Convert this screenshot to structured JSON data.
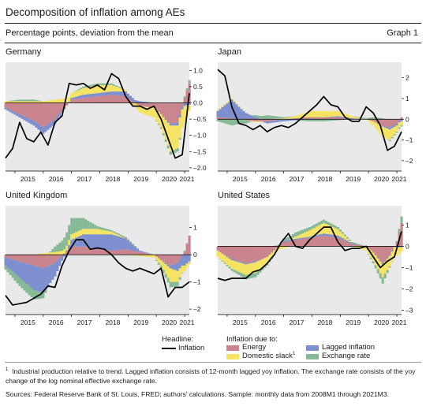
{
  "header": {
    "title": "Decomposition of inflation among AEs",
    "subtitle": "Percentage points, deviation from the mean",
    "graph_number": "Graph 1"
  },
  "legend": {
    "headline_title": "Headline:",
    "headline_item": "Inflation",
    "due_title": "Inflation due to:",
    "items": [
      {
        "label": "Energy",
        "sup": "",
        "color": "#c9848d"
      },
      {
        "label": "Lagged inflation",
        "sup": "",
        "color": "#7e8fcf"
      },
      {
        "label": "Domestic slack",
        "sup": "1",
        "color": "#f5e463"
      },
      {
        "label": "Exchange rate",
        "sup": "",
        "color": "#86b995"
      }
    ]
  },
  "footnotes": {
    "note_marker": "1",
    "note": "Industrial production relative to trend. Lagged inflation consists of 12-month lagged yoy inflation. The exchange rate consists of the yoy change of the log nominal effective exchange rate.",
    "sources": "Sources: Federal Reserve Bank of St. Louis, FRED; authors' calculations. Sample: monthly data from 2008M1 through 2021M3."
  },
  "colors": {
    "energy": "#c9848d",
    "lagged": "#7e8fcf",
    "slack": "#f5e463",
    "fx": "#86b995",
    "headline": "#000000",
    "plot_bg": "#e9e9e9"
  },
  "chart_data": [
    {
      "type": "bar",
      "title": "Germany",
      "stacked": true,
      "x_ticks": [
        "2015",
        "2016",
        "2017",
        "2018",
        "2019",
        "2020",
        "2021"
      ],
      "xlim": [
        "2014-09",
        "2021-03"
      ],
      "ylim": [
        -2.1,
        1.25
      ],
      "y_ticks": [
        1.0,
        0.5,
        0.0,
        -0.5,
        -1.0,
        -1.5,
        -2.0
      ],
      "y_tick_labels": [
        "1.0",
        "0.5",
        "0.0",
        "–0.5",
        "–1.0",
        "–1.5",
        "–2.0"
      ],
      "y_axis_side": "right",
      "x_knots": [
        "2014-09",
        "2015-03",
        "2015-09",
        "2016-01",
        "2016-06",
        "2017-01",
        "2017-06",
        "2017-12",
        "2018-06",
        "2018-12",
        "2019-06",
        "2019-12",
        "2020-03",
        "2020-07",
        "2020-10",
        "2021-01",
        "2021-03"
      ],
      "series": [
        {
          "name": "Energy",
          "key": "energy",
          "values": [
            -0.15,
            -0.35,
            -0.55,
            -0.75,
            -0.5,
            0.1,
            0.15,
            0.2,
            0.25,
            0.2,
            -0.1,
            -0.15,
            -0.35,
            -0.65,
            -0.6,
            0.15,
            0.6
          ]
        },
        {
          "name": "Lagged inflation",
          "key": "lagged",
          "values": [
            -0.05,
            -0.1,
            -0.15,
            -0.2,
            -0.15,
            0.05,
            0.1,
            0.1,
            0.1,
            0.15,
            0.05,
            0.0,
            0.0,
            -0.05,
            -0.1,
            -0.1,
            -0.05
          ]
        },
        {
          "name": "Domestic slack",
          "key": "slack",
          "values": [
            0.05,
            0.05,
            0.05,
            0.05,
            0.1,
            0.15,
            0.2,
            0.25,
            0.2,
            0.05,
            -0.2,
            -0.3,
            -0.4,
            -0.8,
            -0.7,
            -0.5,
            -0.2
          ]
        },
        {
          "name": "Exchange rate",
          "key": "fx",
          "values": [
            0.0,
            0.05,
            0.05,
            0.0,
            0.0,
            0.0,
            0.05,
            0.05,
            0.05,
            0.0,
            0.0,
            0.0,
            -0.05,
            -0.1,
            -0.1,
            0.05,
            0.1
          ]
        }
      ],
      "headline": {
        "name": "Inflation",
        "x": [
          "2014-09",
          "2014-12",
          "2015-03",
          "2015-06",
          "2015-09",
          "2015-12",
          "2016-03",
          "2016-06",
          "2016-09",
          "2016-12",
          "2017-03",
          "2017-06",
          "2017-09",
          "2017-12",
          "2018-03",
          "2018-06",
          "2018-09",
          "2018-12",
          "2019-03",
          "2019-06",
          "2019-09",
          "2019-12",
          "2020-03",
          "2020-06",
          "2020-09",
          "2020-12",
          "2021-03"
        ],
        "y": [
          -1.7,
          -1.4,
          -0.6,
          -1.1,
          -1.2,
          -0.9,
          -1.3,
          -0.6,
          -0.4,
          0.6,
          0.55,
          0.6,
          0.45,
          0.55,
          0.4,
          0.9,
          0.75,
          0.2,
          -0.1,
          -0.1,
          -0.2,
          -0.1,
          -0.5,
          -1.1,
          -1.7,
          -1.6,
          0.3
        ]
      }
    },
    {
      "type": "bar",
      "title": "Japan",
      "stacked": true,
      "x_ticks": [
        "2015",
        "2016",
        "2017",
        "2018",
        "2019",
        "2020",
        "2021"
      ],
      "xlim": [
        "2014-09",
        "2021-03"
      ],
      "ylim": [
        -2.5,
        2.75
      ],
      "y_ticks": [
        2,
        1,
        0,
        -1,
        -2
      ],
      "y_tick_labels": [
        "2",
        "1",
        "0",
        "–1",
        "–2"
      ],
      "y_axis_side": "right",
      "x_knots": [
        "2014-09",
        "2015-03",
        "2015-09",
        "2016-01",
        "2016-06",
        "2017-01",
        "2017-06",
        "2017-12",
        "2018-06",
        "2018-12",
        "2019-06",
        "2019-12",
        "2020-03",
        "2020-07",
        "2020-10",
        "2021-01",
        "2021-03"
      ],
      "series": [
        {
          "name": "Energy",
          "key": "energy",
          "values": [
            0.1,
            0.05,
            -0.05,
            -0.1,
            -0.1,
            0.0,
            0.05,
            0.1,
            0.1,
            0.1,
            0.0,
            0.0,
            -0.1,
            -0.3,
            -0.4,
            -0.2,
            0.1
          ]
        },
        {
          "name": "Lagged inflation",
          "key": "lagged",
          "values": [
            0.3,
            0.9,
            0.3,
            0.1,
            -0.1,
            -0.1,
            -0.05,
            0.0,
            0.0,
            0.05,
            0.05,
            0.0,
            0.0,
            -0.05,
            -0.1,
            -0.1,
            -0.1
          ]
        },
        {
          "name": "Domestic slack",
          "key": "slack",
          "values": [
            0.05,
            0.05,
            0.0,
            -0.05,
            0.0,
            0.05,
            0.1,
            0.3,
            0.3,
            0.25,
            0.1,
            0.0,
            -0.2,
            -0.5,
            -0.5,
            -0.3,
            -0.2
          ]
        },
        {
          "name": "Exchange rate",
          "key": "fx",
          "values": [
            -0.1,
            -0.3,
            -0.15,
            0.1,
            0.2,
            0.05,
            0.0,
            -0.1,
            -0.1,
            -0.05,
            0.0,
            0.05,
            0.1,
            0.05,
            -0.05,
            -0.05,
            -0.05
          ]
        }
      ],
      "headline": {
        "name": "Inflation",
        "x": [
          "2014-09",
          "2014-12",
          "2015-03",
          "2015-06",
          "2015-09",
          "2015-12",
          "2016-03",
          "2016-06",
          "2016-09",
          "2016-12",
          "2017-03",
          "2017-06",
          "2017-09",
          "2017-12",
          "2018-03",
          "2018-06",
          "2018-09",
          "2018-12",
          "2019-03",
          "2019-06",
          "2019-09",
          "2019-12",
          "2020-03",
          "2020-06",
          "2020-09",
          "2020-12",
          "2021-03"
        ],
        "y": [
          2.4,
          2.1,
          0.6,
          -0.2,
          -0.3,
          -0.5,
          -0.3,
          -0.6,
          -0.4,
          -0.3,
          -0.4,
          -0.2,
          0.1,
          0.4,
          0.7,
          1.1,
          0.7,
          0.6,
          0.1,
          -0.1,
          -0.1,
          0.6,
          0.3,
          -0.3,
          -1.5,
          -1.3,
          -0.6
        ]
      }
    },
    {
      "type": "bar",
      "title": "United Kingdom",
      "stacked": true,
      "x_ticks": [
        "2015",
        "2016",
        "2017",
        "2018",
        "2019",
        "2020",
        "2021"
      ],
      "xlim": [
        "2014-09",
        "2021-03"
      ],
      "ylim": [
        -2.2,
        1.8
      ],
      "y_ticks": [
        1,
        0,
        -1,
        -2
      ],
      "y_tick_labels": [
        "1",
        "0",
        "–1",
        "–2"
      ],
      "y_axis_side": "right",
      "x_knots": [
        "2014-09",
        "2015-03",
        "2015-09",
        "2016-01",
        "2016-06",
        "2017-01",
        "2017-06",
        "2017-12",
        "2018-06",
        "2018-12",
        "2019-06",
        "2019-12",
        "2020-03",
        "2020-07",
        "2020-10",
        "2021-01",
        "2021-03"
      ],
      "series": [
        {
          "name": "Energy",
          "key": "energy",
          "values": [
            -0.1,
            -0.25,
            -0.4,
            -0.5,
            -0.3,
            0.3,
            0.3,
            0.2,
            0.15,
            0.2,
            0.1,
            0.0,
            -0.2,
            -0.4,
            -0.3,
            0.1,
            0.7
          ]
        },
        {
          "name": "Lagged inflation",
          "key": "lagged",
          "values": [
            -0.3,
            -0.6,
            -0.9,
            -0.9,
            -0.5,
            0.25,
            0.45,
            0.55,
            0.6,
            0.4,
            0.05,
            0.0,
            0.0,
            -0.1,
            -0.3,
            -0.4,
            -0.25
          ]
        },
        {
          "name": "Domestic slack",
          "key": "slack",
          "values": [
            0.0,
            0.0,
            0.0,
            0.05,
            0.1,
            0.2,
            0.2,
            0.2,
            0.1,
            0.0,
            -0.05,
            -0.1,
            -0.2,
            -0.5,
            -0.4,
            -0.2,
            -0.1
          ]
        },
        {
          "name": "Exchange rate",
          "key": "fx",
          "values": [
            -0.15,
            -0.3,
            -0.35,
            -0.2,
            0.2,
            0.6,
            0.4,
            0.1,
            0.05,
            0.05,
            0.0,
            0.0,
            -0.1,
            -0.2,
            -0.15,
            0.05,
            0.0
          ]
        }
      ],
      "headline": {
        "name": "Inflation",
        "x": [
          "2014-09",
          "2014-12",
          "2015-03",
          "2015-06",
          "2015-09",
          "2015-12",
          "2016-03",
          "2016-06",
          "2016-09",
          "2016-12",
          "2017-03",
          "2017-06",
          "2017-09",
          "2017-12",
          "2018-03",
          "2018-06",
          "2018-09",
          "2018-12",
          "2019-03",
          "2019-06",
          "2019-09",
          "2019-12",
          "2020-03",
          "2020-06",
          "2020-09",
          "2020-12",
          "2021-03"
        ],
        "y": [
          -1.5,
          -1.85,
          -1.8,
          -1.75,
          -1.6,
          -1.45,
          -1.15,
          -1.2,
          -0.4,
          0.15,
          0.55,
          0.55,
          0.2,
          0.25,
          0.2,
          0.0,
          -0.3,
          -0.5,
          -0.6,
          -0.5,
          -0.6,
          -0.7,
          -0.5,
          -1.55,
          -1.2,
          -1.2,
          -1.0
        ]
      }
    },
    {
      "type": "bar",
      "title": "United States",
      "stacked": true,
      "x_ticks": [
        "2015",
        "2016",
        "2017",
        "2018",
        "2019",
        "2020",
        "2021"
      ],
      "xlim": [
        "2014-09",
        "2021-03"
      ],
      "ylim": [
        -3.2,
        1.9
      ],
      "y_ticks": [
        1,
        0,
        -1,
        -2,
        -3
      ],
      "y_tick_labels": [
        "1",
        "0",
        "–1",
        "–2",
        "–3"
      ],
      "y_axis_side": "right",
      "x_knots": [
        "2014-09",
        "2015-03",
        "2015-09",
        "2016-01",
        "2016-06",
        "2017-01",
        "2017-06",
        "2017-12",
        "2018-06",
        "2018-12",
        "2019-06",
        "2019-12",
        "2020-03",
        "2020-07",
        "2020-10",
        "2021-01",
        "2021-03"
      ],
      "series": [
        {
          "name": "Energy",
          "key": "energy",
          "values": [
            -0.2,
            -0.6,
            -0.8,
            -0.7,
            -0.5,
            0.2,
            0.3,
            0.4,
            0.5,
            0.4,
            0.1,
            0.0,
            -0.3,
            -0.8,
            -0.4,
            0.2,
            1.1
          ]
        },
        {
          "name": "Lagged inflation",
          "key": "lagged",
          "values": [
            0.0,
            -0.05,
            -0.05,
            -0.05,
            0.0,
            0.05,
            0.05,
            0.05,
            0.1,
            0.1,
            0.05,
            0.0,
            0.0,
            -0.05,
            -0.05,
            -0.05,
            -0.05
          ]
        },
        {
          "name": "Domestic slack",
          "key": "slack",
          "values": [
            -0.3,
            -0.4,
            -0.5,
            -0.5,
            -0.3,
            -0.1,
            0.1,
            0.3,
            0.5,
            0.3,
            0.0,
            -0.2,
            -0.4,
            -0.6,
            -0.5,
            -0.4,
            -0.2
          ]
        },
        {
          "name": "Exchange rate",
          "key": "fx",
          "values": [
            0.0,
            -0.1,
            -0.2,
            -0.2,
            -0.1,
            0.1,
            0.2,
            0.15,
            0.15,
            0.1,
            0.05,
            0.0,
            -0.1,
            -0.3,
            -0.05,
            0.05,
            0.3
          ]
        }
      ],
      "headline": {
        "name": "Inflation",
        "x": [
          "2014-09",
          "2014-12",
          "2015-03",
          "2015-06",
          "2015-09",
          "2015-12",
          "2016-03",
          "2016-06",
          "2016-09",
          "2016-12",
          "2017-03",
          "2017-06",
          "2017-09",
          "2017-12",
          "2018-03",
          "2018-06",
          "2018-09",
          "2018-12",
          "2019-03",
          "2019-06",
          "2019-09",
          "2019-12",
          "2020-03",
          "2020-06",
          "2020-09",
          "2020-12",
          "2021-03"
        ],
        "y": [
          -1.5,
          -1.6,
          -1.5,
          -1.5,
          -1.5,
          -1.2,
          -1.1,
          -0.8,
          -0.4,
          0.2,
          0.6,
          0.0,
          -0.1,
          0.3,
          0.6,
          0.9,
          0.9,
          0.2,
          -0.2,
          -0.1,
          -0.1,
          0.0,
          -0.5,
          -1.0,
          -0.7,
          -0.5,
          0.7
        ]
      }
    }
  ]
}
